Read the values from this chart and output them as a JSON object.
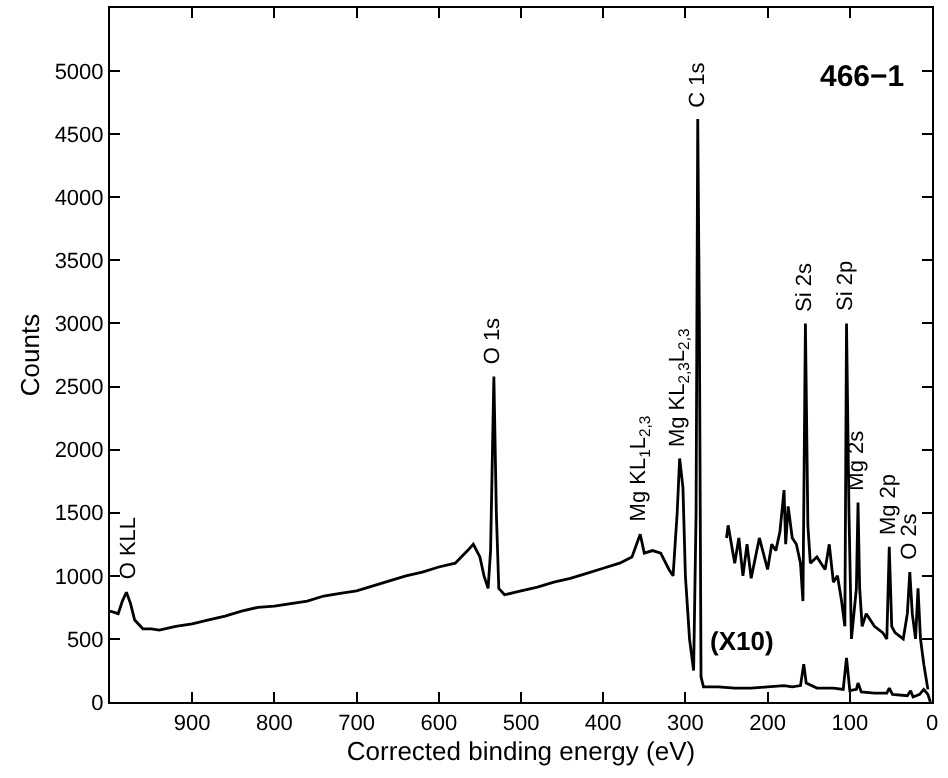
{
  "chart_data": {
    "type": "line",
    "xlabel": "Corrected binding energy (eV)",
    "ylabel": "Counts",
    "xlim": [
      1000,
      0
    ],
    "xticks": [
      900,
      800,
      700,
      600,
      500,
      400,
      300,
      200,
      100,
      0
    ],
    "ylim": [
      0,
      5500
    ],
    "yticks": [
      0,
      500,
      1000,
      1500,
      2000,
      2500,
      3000,
      3500,
      4000,
      4500,
      5000
    ],
    "marker": "none",
    "line_style": "solid",
    "series": [
      {
        "color": "#000000",
        "x": [
          1000,
          990,
          985,
          980,
          975,
          970,
          960,
          950,
          940,
          920,
          900,
          880,
          860,
          840,
          820,
          800,
          780,
          760,
          740,
          720,
          700,
          680,
          660,
          640,
          620,
          600,
          580,
          565,
          558,
          550,
          545,
          540,
          537,
          533,
          530,
          527,
          520,
          500,
          480,
          460,
          440,
          420,
          400,
          380,
          365,
          355,
          350,
          340,
          330,
          320,
          315,
          310,
          307,
          303,
          300,
          295,
          290,
          287,
          285,
          283,
          281,
          278,
          260,
          240,
          220,
          200,
          180,
          170,
          160,
          156,
          153,
          140,
          120,
          108,
          104,
          100,
          92,
          90,
          86,
          70,
          55,
          52,
          48,
          30,
          26,
          23,
          15,
          10,
          5,
          2
        ],
        "values": [
          720,
          700,
          800,
          870,
          780,
          650,
          580,
          580,
          570,
          600,
          620,
          650,
          680,
          720,
          750,
          760,
          780,
          800,
          840,
          860,
          880,
          920,
          960,
          1000,
          1030,
          1070,
          1100,
          1200,
          1250,
          1150,
          1000,
          900,
          1200,
          2580,
          1500,
          900,
          850,
          880,
          910,
          950,
          980,
          1020,
          1060,
          1100,
          1150,
          1330,
          1180,
          1200,
          1180,
          1050,
          1000,
          1500,
          1930,
          1700,
          1000,
          500,
          250,
          1500,
          4620,
          3000,
          200,
          120,
          120,
          110,
          110,
          120,
          130,
          120,
          130,
          300,
          150,
          110,
          110,
          100,
          350,
          90,
          100,
          150,
          80,
          70,
          70,
          110,
          60,
          50,
          90,
          40,
          60,
          100,
          60,
          0
        ]
      },
      {
        "color": "#000000",
        "x": [
          250,
          248,
          240,
          235,
          230,
          225,
          220,
          210,
          200,
          195,
          190,
          185,
          180,
          178,
          175,
          170,
          165,
          160,
          157,
          154,
          151,
          148,
          140,
          130,
          125,
          120,
          115,
          110,
          106,
          104,
          101,
          98,
          95,
          92,
          90,
          88,
          85,
          80,
          70,
          60,
          55,
          52,
          49,
          45,
          35,
          30,
          27,
          24,
          20,
          17,
          14,
          10,
          5
        ],
        "values": [
          1300,
          1400,
          1100,
          1300,
          1000,
          1250,
          980,
          1300,
          1050,
          1250,
          1200,
          1350,
          1680,
          1250,
          1550,
          1300,
          1250,
          1100,
          800,
          3000,
          1400,
          1100,
          1150,
          1050,
          1250,
          950,
          1000,
          800,
          600,
          3000,
          1500,
          500,
          700,
          900,
          1580,
          900,
          600,
          700,
          600,
          550,
          500,
          1230,
          600,
          550,
          500,
          700,
          1030,
          700,
          500,
          900,
          500,
          300,
          100
        ]
      }
    ],
    "annotations": [
      "466−1",
      "(X10)",
      {
        "text": "O KLL",
        "x": 978,
        "y": 870
      },
      {
        "text": "O 1s",
        "x": 533,
        "y": 2580
      },
      {
        "text": "Mg KL$_{1}$L$_{2,3}$",
        "x": 355,
        "y": 1330
      },
      {
        "text": "Mg KL$_{2,3}$L$_{2,3}$",
        "x": 307,
        "y": 1930
      },
      {
        "text": "C 1s",
        "x": 285,
        "y": 4620
      },
      {
        "text": "Si 2s",
        "x": 154,
        "y": 3000
      },
      {
        "text": "Si 2p",
        "x": 104,
        "y": 3000
      },
      {
        "text": "Mg 2s",
        "x": 90,
        "y": 1580
      },
      {
        "text": "Mg 2p",
        "x": 52,
        "y": 1230
      },
      {
        "text": "O 2s",
        "x": 27,
        "y": 1030
      }
    ]
  }
}
